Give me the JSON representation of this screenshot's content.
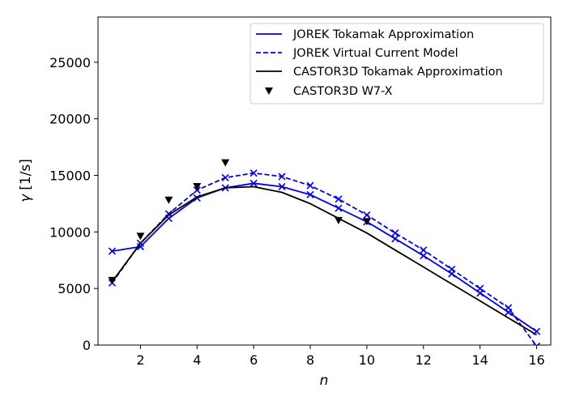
{
  "chart_data": {
    "type": "line",
    "title": "",
    "xlabel_symbol": "n",
    "ylabel_symbol": "γ",
    "ylabel_unit": "[1/s]",
    "xlim": [
      0.5,
      16.5
    ],
    "ylim": [
      0,
      29000
    ],
    "xticks": [
      2,
      4,
      6,
      8,
      10,
      12,
      14,
      16
    ],
    "yticks": [
      0,
      5000,
      10000,
      15000,
      20000,
      25000
    ],
    "grid": false,
    "legend_position": "top-right",
    "series": [
      {
        "name": "JOREK Tokamak Approximation",
        "style": "solid",
        "color": "#0000ee",
        "marker": "x",
        "x": [
          1,
          2,
          3,
          4,
          5,
          6,
          7,
          8,
          9,
          10,
          11,
          12,
          13,
          14,
          15,
          16
        ],
        "y": [
          8300,
          8700,
          11200,
          13000,
          13900,
          14300,
          14000,
          13300,
          12100,
          10900,
          9400,
          7900,
          6300,
          4600,
          2900,
          1200
        ]
      },
      {
        "name": "JOREK Virtual Current Model",
        "style": "dashed",
        "color": "#0000ee",
        "marker": "x",
        "x": [
          1,
          2,
          3,
          4,
          5,
          6,
          7,
          8,
          9,
          10,
          11,
          12,
          13,
          14,
          15,
          16
        ],
        "y": [
          5500,
          9000,
          11600,
          13700,
          14800,
          15200,
          14900,
          14100,
          12900,
          11500,
          9900,
          8400,
          6700,
          5000,
          3300,
          -100
        ]
      },
      {
        "name": "CASTOR3D Tokamak Approximation",
        "style": "solid",
        "color": "#000000",
        "marker": "none",
        "x": [
          1,
          2,
          3,
          4,
          5,
          6,
          7,
          8,
          9,
          10,
          11,
          12,
          13,
          14,
          15,
          16
        ],
        "y": [
          5600,
          9000,
          11500,
          13100,
          13900,
          14000,
          13500,
          12500,
          11200,
          9900,
          8400,
          6900,
          5400,
          3900,
          2400,
          900
        ]
      },
      {
        "name": "CASTOR3D W7-X",
        "style": "markers",
        "color": "#000000",
        "marker": "triangle-down",
        "x": [
          1,
          2,
          3,
          4,
          5,
          9,
          10
        ],
        "y": [
          5700,
          9600,
          12800,
          14000,
          16100,
          11000,
          10900
        ]
      }
    ]
  }
}
